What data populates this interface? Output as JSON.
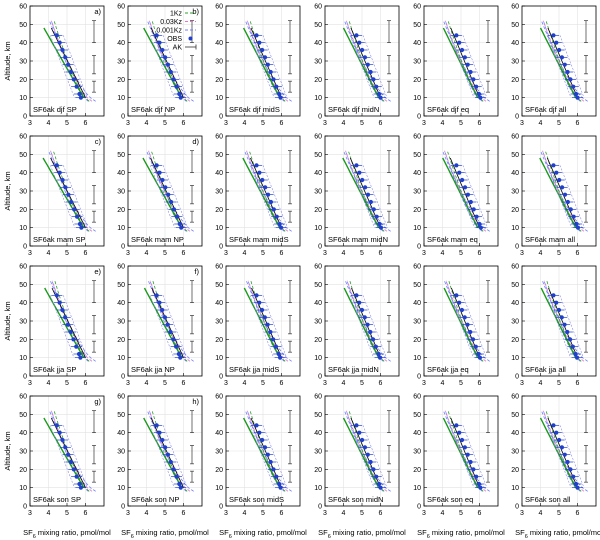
{
  "figure": {
    "y_axis_label": "Altitude, km",
    "x_axis_label_prefix": "SF",
    "x_axis_label_sub": "6",
    "x_axis_label_rest": " mixing ratio, pmol/mol"
  },
  "legend": {
    "entries": [
      {
        "label": "1Kz",
        "style": "dashed-green"
      },
      {
        "label": "0.03Kz",
        "style": "dashed-pink"
      },
      {
        "label": "0.001Kz",
        "style": "dashed-blue"
      },
      {
        "label": "OBS",
        "style": "blue-points"
      },
      {
        "label": "AK",
        "style": "black-errorbar"
      }
    ]
  },
  "colors": {
    "kz1": "#2ca02c",
    "kz003": "#e377c2",
    "kz0001": "#6f7fff",
    "obs": "#1f3fcc",
    "obs_band": "#8a8ae6",
    "model_solid": "#000000",
    "model_green": "#1a9a1a"
  },
  "chart_data": [
    {
      "type": "line",
      "panel": "SF6ak djf SP",
      "letter": "a)",
      "xlim": [
        3,
        7
      ],
      "ylim": [
        0,
        60
      ],
      "xticks": [
        3,
        4,
        5,
        6
      ],
      "yticks": [
        0,
        10,
        20,
        30,
        40,
        50,
        60
      ]
    },
    {
      "type": "line",
      "panel": "SF6ak djf NP",
      "letter": "b)",
      "xlim": [
        3,
        7
      ],
      "ylim": [
        0,
        60
      ],
      "xticks": [
        3,
        4,
        5,
        6
      ],
      "yticks": [
        0,
        10,
        20,
        30,
        40,
        50,
        60
      ]
    },
    {
      "type": "line",
      "panel": "SF6ak djf midS",
      "letter": "",
      "xlim": [
        3,
        7
      ],
      "ylim": [
        0,
        60
      ],
      "xticks": [
        3,
        4,
        5,
        6
      ],
      "yticks": [
        0,
        10,
        20,
        30,
        40,
        50,
        60
      ]
    },
    {
      "type": "line",
      "panel": "SF6ak djf midN",
      "letter": "",
      "xlim": [
        3,
        7
      ],
      "ylim": [
        0,
        60
      ],
      "xticks": [
        3,
        4,
        5,
        6
      ],
      "yticks": [
        0,
        10,
        20,
        30,
        40,
        50,
        60
      ]
    },
    {
      "type": "line",
      "panel": "SF6ak djf eq",
      "letter": "",
      "xlim": [
        3,
        7
      ],
      "ylim": [
        0,
        60
      ],
      "xticks": [
        3,
        4,
        5,
        6
      ],
      "yticks": [
        0,
        10,
        20,
        30,
        40,
        50,
        60
      ]
    },
    {
      "type": "line",
      "panel": "SF6ak djf all",
      "letter": "",
      "xlim": [
        3,
        7
      ],
      "ylim": [
        0,
        60
      ],
      "xticks": [
        3,
        4,
        5,
        6
      ],
      "yticks": [
        0,
        10,
        20,
        30,
        40,
        50,
        60
      ]
    },
    {
      "type": "line",
      "panel": "SF6ak mam SP",
      "letter": "c)",
      "xlim": [
        3,
        7
      ],
      "ylim": [
        0,
        60
      ],
      "xticks": [
        3,
        4,
        5,
        6
      ],
      "yticks": [
        0,
        10,
        20,
        30,
        40,
        50,
        60
      ]
    },
    {
      "type": "line",
      "panel": "SF6ak mam NP",
      "letter": "d)",
      "xlim": [
        3,
        7
      ],
      "ylim": [
        0,
        60
      ],
      "xticks": [
        3,
        4,
        5,
        6
      ],
      "yticks": [
        0,
        10,
        20,
        30,
        40,
        50,
        60
      ]
    },
    {
      "type": "line",
      "panel": "SF6ak mam midS",
      "letter": "",
      "xlim": [
        3,
        7
      ],
      "ylim": [
        0,
        60
      ],
      "xticks": [
        3,
        4,
        5,
        6
      ],
      "yticks": [
        0,
        10,
        20,
        30,
        40,
        50,
        60
      ]
    },
    {
      "type": "line",
      "panel": "SF6ak mam midN",
      "letter": "",
      "xlim": [
        3,
        7
      ],
      "ylim": [
        0,
        60
      ],
      "xticks": [
        3,
        4,
        5,
        6
      ],
      "yticks": [
        0,
        10,
        20,
        30,
        40,
        50,
        60
      ]
    },
    {
      "type": "line",
      "panel": "SF6ak mam eq",
      "letter": "",
      "xlim": [
        3,
        7
      ],
      "ylim": [
        0,
        60
      ],
      "xticks": [
        3,
        4,
        5,
        6
      ],
      "yticks": [
        0,
        10,
        20,
        30,
        40,
        50,
        60
      ]
    },
    {
      "type": "line",
      "panel": "SF6ak mam all",
      "letter": "",
      "xlim": [
        3,
        7
      ],
      "ylim": [
        0,
        60
      ],
      "xticks": [
        3,
        4,
        5,
        6
      ],
      "yticks": [
        0,
        10,
        20,
        30,
        40,
        50,
        60
      ]
    },
    {
      "type": "line",
      "panel": "SF6ak jja SP",
      "letter": "e)",
      "xlim": [
        3,
        7
      ],
      "ylim": [
        0,
        60
      ],
      "xticks": [
        3,
        4,
        5,
        6
      ],
      "yticks": [
        0,
        10,
        20,
        30,
        40,
        50,
        60
      ]
    },
    {
      "type": "line",
      "panel": "SF6ak jja NP",
      "letter": "f)",
      "xlim": [
        3,
        7
      ],
      "ylim": [
        0,
        60
      ],
      "xticks": [
        3,
        4,
        5,
        6
      ],
      "yticks": [
        0,
        10,
        20,
        30,
        40,
        50,
        60
      ]
    },
    {
      "type": "line",
      "panel": "SF6ak jja midS",
      "letter": "",
      "xlim": [
        3,
        7
      ],
      "ylim": [
        0,
        60
      ],
      "xticks": [
        3,
        4,
        5,
        6
      ],
      "yticks": [
        0,
        10,
        20,
        30,
        40,
        50,
        60
      ]
    },
    {
      "type": "line",
      "panel": "SF6ak jja midN",
      "letter": "",
      "xlim": [
        3,
        7
      ],
      "ylim": [
        0,
        60
      ],
      "xticks": [
        3,
        4,
        5,
        6
      ],
      "yticks": [
        0,
        10,
        20,
        30,
        40,
        50,
        60
      ]
    },
    {
      "type": "line",
      "panel": "SF6ak jja eq",
      "letter": "",
      "xlim": [
        3,
        7
      ],
      "ylim": [
        0,
        60
      ],
      "xticks": [
        3,
        4,
        5,
        6
      ],
      "yticks": [
        0,
        10,
        20,
        30,
        40,
        50,
        60
      ]
    },
    {
      "type": "line",
      "panel": "SF6ak jja all",
      "letter": "",
      "xlim": [
        3,
        7
      ],
      "ylim": [
        0,
        60
      ],
      "xticks": [
        3,
        4,
        5,
        6
      ],
      "yticks": [
        0,
        10,
        20,
        30,
        40,
        50,
        60
      ]
    },
    {
      "type": "line",
      "panel": "SF6ak son SP",
      "letter": "g)",
      "xlim": [
        3,
        7
      ],
      "ylim": [
        0,
        60
      ],
      "xticks": [
        3,
        4,
        5,
        6
      ],
      "yticks": [
        0,
        10,
        20,
        30,
        40,
        50,
        60
      ]
    },
    {
      "type": "line",
      "panel": "SF6ak son NP",
      "letter": "h)",
      "xlim": [
        3,
        7
      ],
      "ylim": [
        0,
        60
      ],
      "xticks": [
        3,
        4,
        5,
        6
      ],
      "yticks": [
        0,
        10,
        20,
        30,
        40,
        50,
        60
      ]
    },
    {
      "type": "line",
      "panel": "SF6ak son midS",
      "letter": "",
      "xlim": [
        3,
        7
      ],
      "ylim": [
        0,
        60
      ],
      "xticks": [
        3,
        4,
        5,
        6
      ],
      "yticks": [
        0,
        10,
        20,
        30,
        40,
        50,
        60
      ]
    },
    {
      "type": "line",
      "panel": "SF6ak son midN",
      "letter": "",
      "xlim": [
        3,
        7
      ],
      "ylim": [
        0,
        60
      ],
      "xticks": [
        3,
        4,
        5,
        6
      ],
      "yticks": [
        0,
        10,
        20,
        30,
        40,
        50,
        60
      ]
    },
    {
      "type": "line",
      "panel": "SF6ak son eq",
      "letter": "",
      "xlim": [
        3,
        7
      ],
      "ylim": [
        0,
        60
      ],
      "xticks": [
        3,
        4,
        5,
        6
      ],
      "yticks": [
        0,
        10,
        20,
        30,
        40,
        50,
        60
      ]
    },
    {
      "type": "line",
      "panel": "SF6ak son all",
      "letter": "",
      "xlim": [
        3,
        7
      ],
      "ylim": [
        0,
        60
      ],
      "xticks": [
        3,
        4,
        5,
        6
      ],
      "yticks": [
        0,
        10,
        20,
        30,
        40,
        50,
        60
      ]
    }
  ]
}
